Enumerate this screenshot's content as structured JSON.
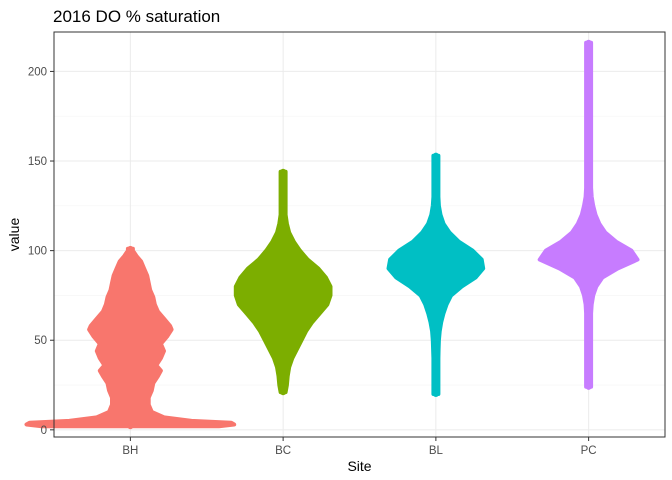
{
  "chart_data": {
    "type": "violin",
    "title": "2016 DO % saturation",
    "xlabel": "Site",
    "ylabel": "value",
    "ylim": [
      -4,
      222
    ],
    "yticks": [
      0,
      50,
      100,
      150,
      200
    ],
    "ytick_labels": [
      "0",
      "50",
      "100",
      "150",
      "200"
    ],
    "categories": [
      "BH",
      "BC",
      "BL",
      "PC"
    ],
    "grid": "on",
    "legend": "none",
    "series": [
      {
        "category": "BH",
        "color": "#F8766D",
        "min": 2,
        "max": 101,
        "profile": [
          {
            "y": 2,
            "w": 0.58
          },
          {
            "y": 3,
            "w": 0.68
          },
          {
            "y": 4,
            "w": 0.66
          },
          {
            "y": 5,
            "w": 0.4
          },
          {
            "y": 7,
            "w": 0.22
          },
          {
            "y": 10,
            "w": 0.14
          },
          {
            "y": 14,
            "w": 0.12
          },
          {
            "y": 18,
            "w": 0.12
          },
          {
            "y": 22,
            "w": 0.14
          },
          {
            "y": 26,
            "w": 0.15
          },
          {
            "y": 30,
            "w": 0.18
          },
          {
            "y": 33,
            "w": 0.2
          },
          {
            "y": 36,
            "w": 0.17
          },
          {
            "y": 40,
            "w": 0.2
          },
          {
            "y": 44,
            "w": 0.22
          },
          {
            "y": 48,
            "w": 0.2
          },
          {
            "y": 52,
            "w": 0.24
          },
          {
            "y": 56,
            "w": 0.27
          },
          {
            "y": 58,
            "w": 0.26
          },
          {
            "y": 62,
            "w": 0.22
          },
          {
            "y": 66,
            "w": 0.18
          },
          {
            "y": 70,
            "w": 0.16
          },
          {
            "y": 74,
            "w": 0.15
          },
          {
            "y": 78,
            "w": 0.13
          },
          {
            "y": 82,
            "w": 0.12
          },
          {
            "y": 86,
            "w": 0.11
          },
          {
            "y": 90,
            "w": 0.09
          },
          {
            "y": 94,
            "w": 0.07
          },
          {
            "y": 97,
            "w": 0.04
          },
          {
            "y": 100,
            "w": 0.015
          },
          {
            "y": 101,
            "w": 0.005
          }
        ]
      },
      {
        "category": "BC",
        "color": "#7CAE00",
        "min": 21,
        "max": 144,
        "profile": [
          {
            "y": 21,
            "w": 0.01
          },
          {
            "y": 25,
            "w": 0.025
          },
          {
            "y": 30,
            "w": 0.03
          },
          {
            "y": 35,
            "w": 0.04
          },
          {
            "y": 40,
            "w": 0.06
          },
          {
            "y": 45,
            "w": 0.09
          },
          {
            "y": 50,
            "w": 0.12
          },
          {
            "y": 55,
            "w": 0.15
          },
          {
            "y": 60,
            "w": 0.19
          },
          {
            "y": 65,
            "w": 0.24
          },
          {
            "y": 70,
            "w": 0.29
          },
          {
            "y": 75,
            "w": 0.31
          },
          {
            "y": 80,
            "w": 0.31
          },
          {
            "y": 85,
            "w": 0.28
          },
          {
            "y": 90,
            "w": 0.23
          },
          {
            "y": 95,
            "w": 0.16
          },
          {
            "y": 100,
            "w": 0.11
          },
          {
            "y": 105,
            "w": 0.07
          },
          {
            "y": 110,
            "w": 0.04
          },
          {
            "y": 115,
            "w": 0.025
          },
          {
            "y": 120,
            "w": 0.015
          },
          {
            "y": 125,
            "w": 0.01
          },
          {
            "y": 130,
            "w": 0.008
          },
          {
            "y": 135,
            "w": 0.006
          },
          {
            "y": 140,
            "w": 0.005
          },
          {
            "y": 144,
            "w": 0.004
          }
        ]
      },
      {
        "category": "BL",
        "color": "#00BFC4",
        "min": 20,
        "max": 153,
        "profile": [
          {
            "y": 20,
            "w": 0.008
          },
          {
            "y": 25,
            "w": 0.01
          },
          {
            "y": 30,
            "w": 0.012
          },
          {
            "y": 35,
            "w": 0.014
          },
          {
            "y": 40,
            "w": 0.016
          },
          {
            "y": 45,
            "w": 0.018
          },
          {
            "y": 50,
            "w": 0.02
          },
          {
            "y": 55,
            "w": 0.025
          },
          {
            "y": 60,
            "w": 0.035
          },
          {
            "y": 65,
            "w": 0.05
          },
          {
            "y": 70,
            "w": 0.07
          },
          {
            "y": 75,
            "w": 0.1
          },
          {
            "y": 80,
            "w": 0.17
          },
          {
            "y": 85,
            "w": 0.26
          },
          {
            "y": 90,
            "w": 0.31
          },
          {
            "y": 95,
            "w": 0.3
          },
          {
            "y": 100,
            "w": 0.24
          },
          {
            "y": 105,
            "w": 0.15
          },
          {
            "y": 110,
            "w": 0.09
          },
          {
            "y": 115,
            "w": 0.05
          },
          {
            "y": 120,
            "w": 0.03
          },
          {
            "y": 125,
            "w": 0.02
          },
          {
            "y": 130,
            "w": 0.015
          },
          {
            "y": 135,
            "w": 0.01
          },
          {
            "y": 140,
            "w": 0.008
          },
          {
            "y": 145,
            "w": 0.006
          },
          {
            "y": 150,
            "w": 0.005
          },
          {
            "y": 153,
            "w": 0.004
          }
        ]
      },
      {
        "category": "PC",
        "color": "#C77CFF",
        "min": 24,
        "max": 216,
        "profile": [
          {
            "y": 24,
            "w": 0.006
          },
          {
            "y": 30,
            "w": 0.007
          },
          {
            "y": 40,
            "w": 0.008
          },
          {
            "y": 50,
            "w": 0.009
          },
          {
            "y": 60,
            "w": 0.012
          },
          {
            "y": 65,
            "w": 0.015
          },
          {
            "y": 70,
            "w": 0.02
          },
          {
            "y": 75,
            "w": 0.03
          },
          {
            "y": 80,
            "w": 0.05
          },
          {
            "y": 85,
            "w": 0.09
          },
          {
            "y": 90,
            "w": 0.19
          },
          {
            "y": 95,
            "w": 0.32
          },
          {
            "y": 100,
            "w": 0.28
          },
          {
            "y": 105,
            "w": 0.18
          },
          {
            "y": 110,
            "w": 0.11
          },
          {
            "y": 115,
            "w": 0.07
          },
          {
            "y": 120,
            "w": 0.045
          },
          {
            "y": 125,
            "w": 0.03
          },
          {
            "y": 130,
            "w": 0.02
          },
          {
            "y": 135,
            "w": 0.015
          },
          {
            "y": 140,
            "w": 0.012
          },
          {
            "y": 145,
            "w": 0.01
          },
          {
            "y": 150,
            "w": 0.009
          },
          {
            "y": 160,
            "w": 0.008
          },
          {
            "y": 170,
            "w": 0.007
          },
          {
            "y": 180,
            "w": 0.007
          },
          {
            "y": 190,
            "w": 0.006
          },
          {
            "y": 200,
            "w": 0.006
          },
          {
            "y": 210,
            "w": 0.006
          },
          {
            "y": 216,
            "w": 0.006
          }
        ]
      }
    ]
  }
}
